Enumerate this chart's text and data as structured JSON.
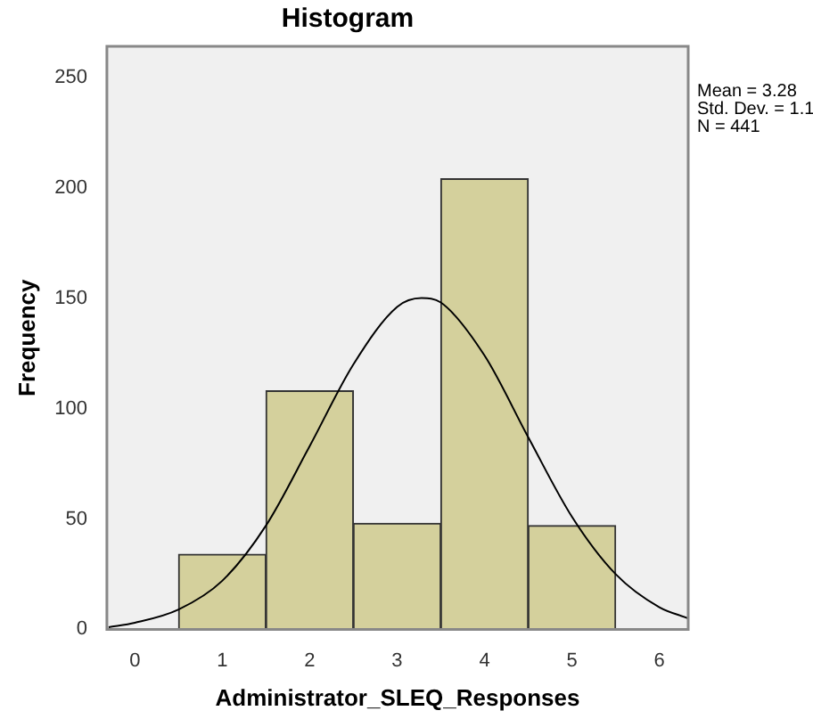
{
  "chart_data": {
    "type": "histogram",
    "title": "Histogram",
    "xlabel": "Administrator_SLEQ_Responses",
    "ylabel": "Frequency",
    "bins": [
      0.5,
      1.5,
      2.5,
      3.5,
      4.5,
      5.5
    ],
    "values": [
      34,
      108,
      48,
      204,
      47
    ],
    "color": "#d4d09c",
    "series": [
      {
        "type": "line",
        "color": "#000000",
        "x": [
          -0.3,
          0,
          0.5,
          1,
          1.5,
          2,
          2.5,
          3,
          3.28,
          3.5,
          4,
          4.5,
          5,
          5.5,
          6,
          6.33
        ],
        "values": [
          1,
          3,
          9,
          22,
          47,
          83,
          120,
          146,
          150,
          148,
          124,
          87,
          51,
          25,
          10,
          5
        ]
      }
    ],
    "xlim": [
      -0.32,
      6.33
    ],
    "xticks": [
      0,
      1,
      2,
      3,
      4,
      5,
      6
    ],
    "ylim": [
      0,
      264
    ],
    "yticks": [
      0,
      50,
      100,
      150,
      200,
      250
    ],
    "marker": "none",
    "line_style": "solid",
    "annotations": [
      "Mean = 3.28",
      "Std. Dev. = 1.1",
      "N = 441"
    ]
  }
}
